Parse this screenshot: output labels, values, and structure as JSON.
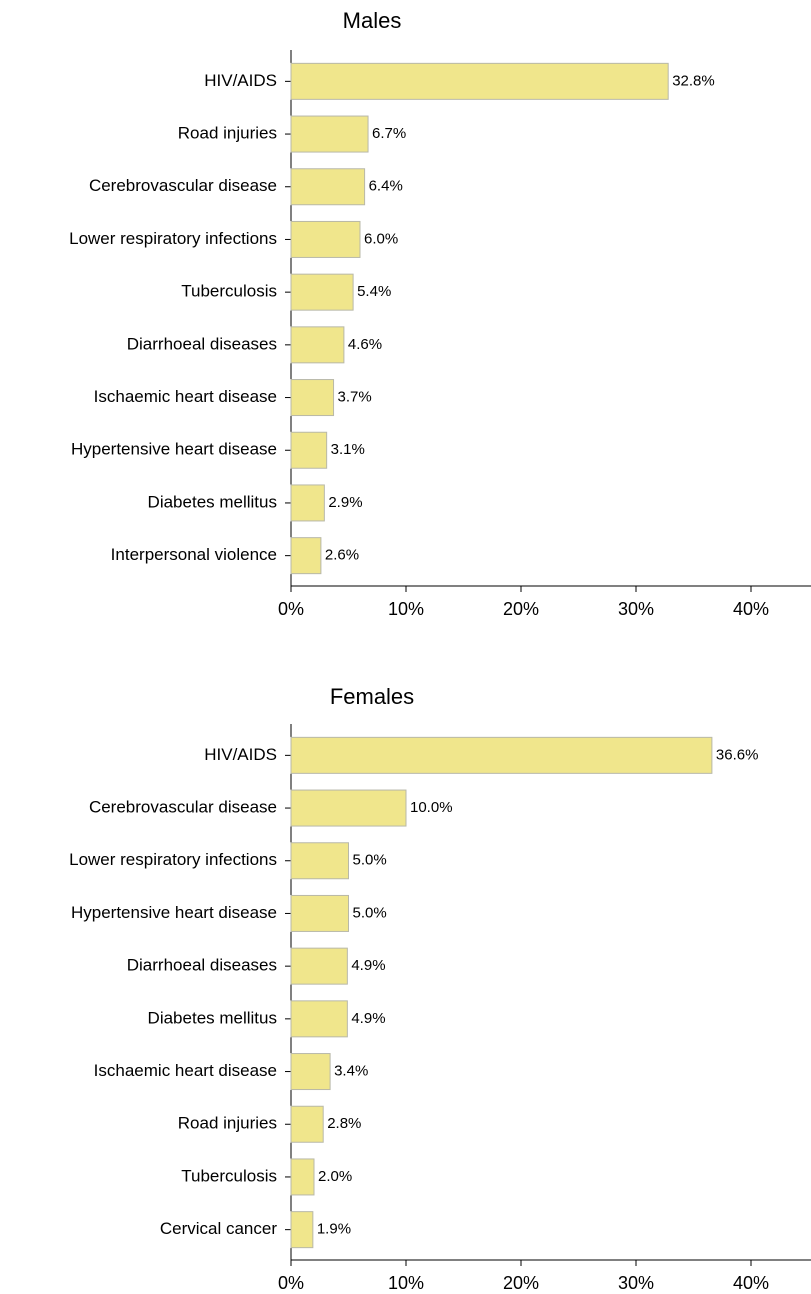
{
  "chart_data": [
    {
      "type": "barh",
      "title": "Males",
      "categories": [
        "HIV/AIDS",
        "Road injuries",
        "Cerebrovascular disease",
        "Lower respiratory infections",
        "Tuberculosis",
        "Diarrhoeal diseases",
        "Ischaemic heart disease",
        "Hypertensive heart disease",
        "Diabetes mellitus",
        "Interpersonal violence"
      ],
      "values": [
        32.8,
        6.7,
        6.4,
        6.0,
        5.4,
        4.6,
        3.7,
        3.1,
        2.9,
        2.6
      ],
      "value_labels": [
        "32.8%",
        "6.7%",
        "6.4%",
        "6.0%",
        "5.4%",
        "4.6%",
        "3.7%",
        "3.1%",
        "2.9%",
        "2.6%"
      ],
      "color": "#f0e68c",
      "xlim": [
        0,
        45
      ],
      "xticks": [
        {
          "value": 0,
          "label": "0%"
        },
        {
          "value": 10,
          "label": "10%"
        },
        {
          "value": 20,
          "label": "20%"
        },
        {
          "value": 30,
          "label": "30%"
        },
        {
          "value": 40,
          "label": "40%"
        }
      ]
    },
    {
      "type": "barh",
      "title": "Females",
      "categories": [
        "HIV/AIDS",
        "Cerebrovascular disease",
        "Lower respiratory infections",
        "Hypertensive heart disease",
        "Diarrhoeal diseases",
        "Diabetes mellitus",
        "Ischaemic heart disease",
        "Road injuries",
        "Tuberculosis",
        "Cervical cancer"
      ],
      "values": [
        36.6,
        10.0,
        5.0,
        5.0,
        4.9,
        4.9,
        3.4,
        2.8,
        2.0,
        1.9
      ],
      "value_labels": [
        "36.6%",
        "10.0%",
        "5.0%",
        "5.0%",
        "4.9%",
        "4.9%",
        "3.4%",
        "2.8%",
        "2.0%",
        "1.9%"
      ],
      "color": "#f0e68c",
      "xlim": [
        0,
        45
      ],
      "xticks": [
        {
          "value": 0,
          "label": "0%"
        },
        {
          "value": 10,
          "label": "10%"
        },
        {
          "value": 20,
          "label": "20%"
        },
        {
          "value": 30,
          "label": "30%"
        },
        {
          "value": 40,
          "label": "40%"
        }
      ]
    }
  ]
}
